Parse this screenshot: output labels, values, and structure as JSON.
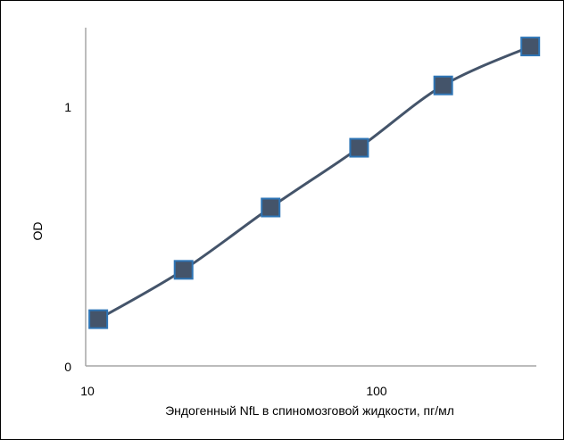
{
  "chart_data": {
    "type": "line",
    "title": "",
    "xlabel": "Эндогенный NfL в спиномозговой жидкости, пг/мл",
    "ylabel": "OD",
    "x_scale": "log",
    "xlim": [
      10,
      300
    ],
    "ylim": [
      0,
      1.25
    ],
    "x_ticks": [
      10,
      100
    ],
    "x_tick_labels": [
      "10",
      "100"
    ],
    "y_ticks": [
      0,
      1
    ],
    "y_tick_labels": [
      "0",
      "1"
    ],
    "grid": false,
    "legend": "none",
    "series": [
      {
        "x": [
          10.9,
          21.5,
          43,
          87,
          170,
          340
        ],
        "y": [
          0.18,
          0.37,
          0.61,
          0.84,
          1.08,
          1.23
        ]
      }
    ],
    "colors": {
      "line": "#44546A",
      "marker_fill": "#44546A",
      "marker_edge": "#2E75B6",
      "axis": "#A6A6A6"
    }
  }
}
